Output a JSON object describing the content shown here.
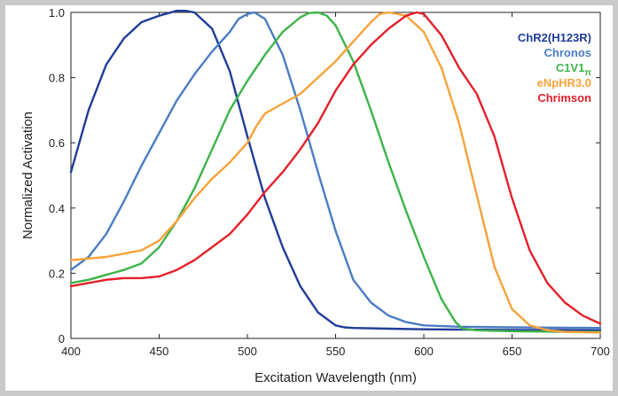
{
  "chart_data": {
    "type": "line",
    "xlabel": "Excitation Wavelength (nm)",
    "ylabel": "Normalized Activation",
    "xlim": [
      400,
      700
    ],
    "ylim": [
      0,
      1.0
    ],
    "x_ticks": [
      "400",
      "450",
      "500",
      "550",
      "600",
      "650",
      "700"
    ],
    "y_ticks": [
      "0",
      "0.2",
      "0.4",
      "0.6",
      "0.8",
      "1.0"
    ],
    "legend_position": "top-right",
    "grid": false,
    "series": [
      {
        "name": "ChR2(H123R)",
        "color": "#1f3c99",
        "x": [
          400,
          410,
          420,
          430,
          440,
          450,
          460,
          465,
          470,
          480,
          490,
          500,
          510,
          520,
          530,
          540,
          550,
          555,
          560,
          580,
          600,
          650,
          700
        ],
        "y": [
          0.51,
          0.7,
          0.84,
          0.92,
          0.97,
          0.99,
          1.005,
          1.005,
          1.0,
          0.95,
          0.82,
          0.62,
          0.43,
          0.28,
          0.16,
          0.08,
          0.04,
          0.034,
          0.032,
          0.03,
          0.028,
          0.026,
          0.025
        ]
      },
      {
        "name": "Chronos",
        "color": "#4a7cc4",
        "x": [
          400,
          410,
          420,
          430,
          440,
          450,
          460,
          470,
          480,
          490,
          495,
          500,
          504,
          510,
          520,
          530,
          540,
          550,
          560,
          570,
          580,
          590,
          600,
          620,
          650,
          700
        ],
        "y": [
          0.21,
          0.25,
          0.32,
          0.42,
          0.53,
          0.63,
          0.73,
          0.81,
          0.88,
          0.94,
          0.98,
          0.995,
          1.0,
          0.98,
          0.87,
          0.7,
          0.51,
          0.33,
          0.18,
          0.11,
          0.07,
          0.05,
          0.04,
          0.036,
          0.034,
          0.032
        ]
      },
      {
        "name": "C1V1",
        "name_subscript": "π",
        "color": "#3db34a",
        "x": [
          400,
          410,
          420,
          430,
          440,
          450,
          460,
          470,
          480,
          490,
          500,
          510,
          520,
          530,
          535,
          540,
          545,
          550,
          560,
          570,
          580,
          590,
          600,
          610,
          618,
          622,
          630,
          650,
          680,
          700
        ],
        "y": [
          0.17,
          0.18,
          0.195,
          0.21,
          0.23,
          0.28,
          0.36,
          0.46,
          0.58,
          0.7,
          0.79,
          0.87,
          0.94,
          0.985,
          0.998,
          1.0,
          0.99,
          0.96,
          0.85,
          0.7,
          0.54,
          0.39,
          0.25,
          0.12,
          0.05,
          0.03,
          0.025,
          0.022,
          0.02,
          0.02
        ]
      },
      {
        "name": "eNpHR3.0",
        "color": "#f7a239",
        "x": [
          400,
          420,
          440,
          450,
          460,
          470,
          480,
          490,
          500,
          505,
          510,
          520,
          530,
          540,
          550,
          560,
          570,
          575,
          580,
          590,
          600,
          610,
          620,
          630,
          640,
          650,
          660,
          670,
          680,
          700
        ],
        "y": [
          0.24,
          0.25,
          0.27,
          0.3,
          0.36,
          0.43,
          0.49,
          0.54,
          0.6,
          0.65,
          0.69,
          0.72,
          0.75,
          0.8,
          0.85,
          0.91,
          0.97,
          0.995,
          1.0,
          0.99,
          0.94,
          0.83,
          0.66,
          0.44,
          0.22,
          0.09,
          0.04,
          0.025,
          0.02,
          0.018
        ]
      },
      {
        "name": "Chrimson",
        "color": "#e3202a",
        "x": [
          400,
          410,
          420,
          430,
          440,
          450,
          460,
          470,
          480,
          490,
          500,
          510,
          520,
          530,
          540,
          550,
          560,
          570,
          580,
          590,
          596,
          600,
          610,
          620,
          630,
          640,
          650,
          660,
          670,
          680,
          690,
          700
        ],
        "y": [
          0.16,
          0.17,
          0.18,
          0.185,
          0.185,
          0.19,
          0.21,
          0.24,
          0.28,
          0.32,
          0.38,
          0.45,
          0.51,
          0.58,
          0.66,
          0.76,
          0.84,
          0.9,
          0.95,
          0.99,
          1.0,
          0.995,
          0.93,
          0.83,
          0.75,
          0.62,
          0.43,
          0.27,
          0.17,
          0.11,
          0.07,
          0.045
        ]
      }
    ]
  }
}
